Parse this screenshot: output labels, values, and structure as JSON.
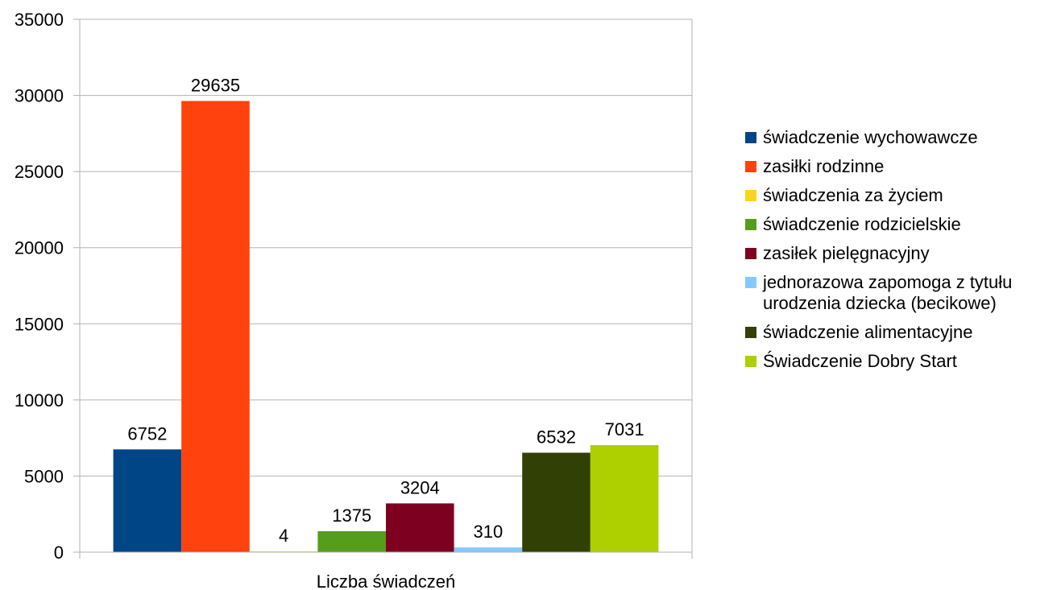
{
  "chart_data": {
    "type": "bar",
    "categories": [
      "Liczba świadczeń"
    ],
    "series": [
      {
        "name": "świadczenie wychowawcze",
        "values": [
          6752
        ],
        "color": "#004586"
      },
      {
        "name": "zasiłki rodzinne",
        "values": [
          29635
        ],
        "color": "#ff420e"
      },
      {
        "name": "świadczenia za życiem",
        "values": [
          4
        ],
        "color": "#ffd320"
      },
      {
        "name": "świadczenie rodzicielskie",
        "values": [
          1375
        ],
        "color": "#579d1c"
      },
      {
        "name": "zasiłek pielęgnacyjny",
        "values": [
          3204
        ],
        "color": "#7e0021"
      },
      {
        "name": "jednorazowa zapomoga z tytułu urodzenia dziecka (becikowe)",
        "values": [
          310
        ],
        "color": "#83caff"
      },
      {
        "name": "świadczenie alimentacyjne",
        "values": [
          6532
        ],
        "color": "#314004"
      },
      {
        "name": "Świadczenie Dobry Start",
        "values": [
          7031
        ],
        "color": "#aecf00"
      }
    ],
    "yticks": [
      0,
      5000,
      10000,
      15000,
      20000,
      25000,
      30000,
      35000
    ],
    "ylim": [
      0,
      35000
    ],
    "grid": true,
    "legend_position": "right",
    "data_labels": [
      "6752",
      "29635",
      "4",
      "1375",
      "3204",
      "310",
      "6532",
      "7031"
    ],
    "title": "",
    "xlabel": "",
    "ylabel": ""
  }
}
